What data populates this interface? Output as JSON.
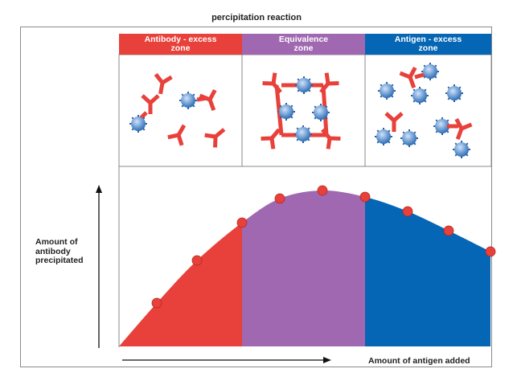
{
  "title": "percipitation reaction",
  "zones": [
    {
      "label_line1": "Antibody - excess",
      "label_line2": "zone",
      "color": "#e8403a"
    },
    {
      "label_line1": "Equivalence",
      "label_line2": "zone",
      "color": "#a068b0"
    },
    {
      "label_line1": "Antigen - excess",
      "label_line2": "zone",
      "color": "#0466b4"
    }
  ],
  "axes": {
    "y_label": "Amount of antibody precipitated",
    "x_label": "Amount of antigen added"
  },
  "colors": {
    "point": "#e8403a",
    "antibody": "#e8403a",
    "antigen": "#4a8fd6"
  }
}
